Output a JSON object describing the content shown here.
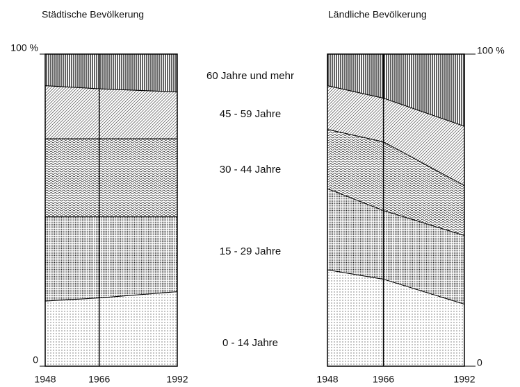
{
  "chart_data": [
    {
      "type": "stacked-area",
      "title": "Städtische Bevölkerung",
      "x": [
        1948,
        1966,
        1992
      ],
      "xlim": [
        1948,
        1992
      ],
      "xticks": [
        1948,
        1966,
        1992
      ],
      "ylim": [
        0,
        100
      ],
      "yticks": [
        0,
        {
          "value": 100,
          "label": "100 %"
        }
      ],
      "ytick_side": "left",
      "series": [
        {
          "values": [
            21,
            22,
            24
          ],
          "pattern": "dots-sparse"
        },
        {
          "values": [
            27,
            26,
            24
          ],
          "pattern": "dots-dense"
        },
        {
          "values": [
            25,
            25,
            25
          ],
          "pattern": "waves"
        },
        {
          "values": [
            17,
            16,
            15
          ],
          "pattern": "diagonal"
        },
        {
          "values": [
            10,
            11,
            12
          ],
          "pattern": "vertical"
        }
      ]
    },
    {
      "type": "stacked-area",
      "title": "Ländliche Bevölkerung",
      "x": [
        1948,
        1966,
        1992
      ],
      "xlim": [
        1948,
        1992
      ],
      "xticks": [
        1948,
        1966,
        1992
      ],
      "ylim": [
        0,
        100
      ],
      "yticks": [
        0,
        {
          "value": 100,
          "label": "100 %"
        }
      ],
      "ytick_side": "right",
      "series": [
        {
          "values": [
            31,
            28,
            20
          ],
          "pattern": "dots-sparse"
        },
        {
          "values": [
            26,
            22,
            22
          ],
          "pattern": "dots-dense"
        },
        {
          "values": [
            19,
            22,
            16
          ],
          "pattern": "waves"
        },
        {
          "values": [
            14,
            14,
            19
          ],
          "pattern": "diagonal"
        },
        {
          "values": [
            10,
            14,
            23
          ],
          "pattern": "vertical"
        }
      ]
    }
  ],
  "legend": {
    "entries": [
      "0 - 14  Jahre",
      "15 - 29  Jahre",
      "30 - 44  Jahre",
      "45 - 59  Jahre",
      "60  Jahre und mehr"
    ]
  }
}
